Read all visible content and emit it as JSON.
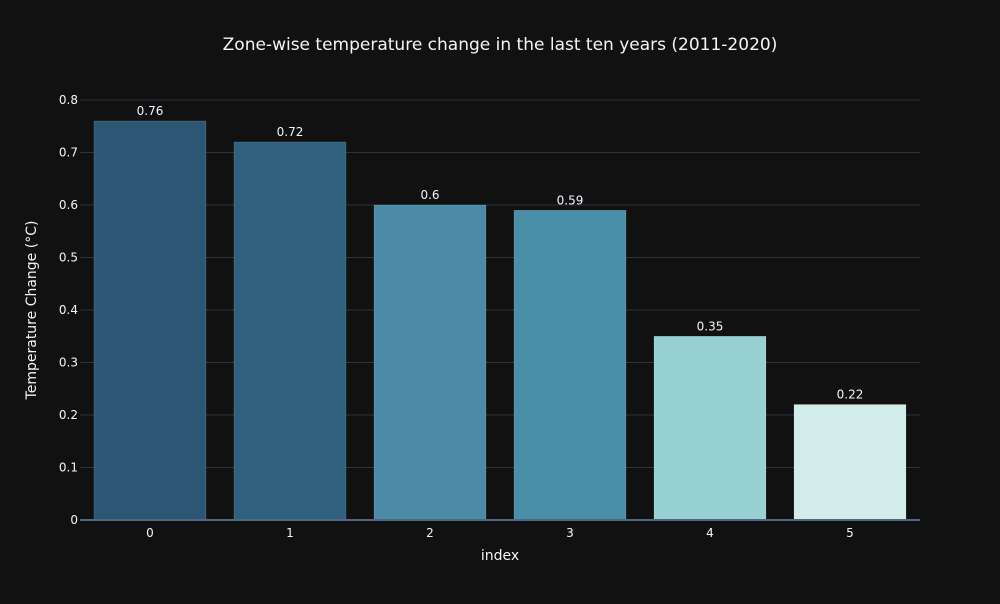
{
  "chart_data": {
    "type": "bar",
    "title": "Zone-wise temperature change in the last ten years (2011-2020)",
    "xlabel": "index",
    "ylabel": "Temperature Change (°C)",
    "categories": [
      "0",
      "1",
      "2",
      "3",
      "4",
      "5"
    ],
    "values": [
      0.76,
      0.72,
      0.6,
      0.59,
      0.35,
      0.22
    ],
    "value_labels": [
      "0.76",
      "0.72",
      "0.6",
      "0.59",
      "0.35",
      "0.22"
    ],
    "bar_colors": [
      "#2c5674",
      "#2f607e",
      "#4b8ba6",
      "#4b8ea8",
      "#98d1d4",
      "#d2ece9"
    ],
    "ylim": [
      0,
      0.8
    ],
    "yticks": [
      0,
      0.1,
      0.2,
      0.3,
      0.4,
      0.5,
      0.6,
      0.7,
      0.8
    ],
    "ytick_labels": [
      "0",
      "0.1",
      "0.2",
      "0.3",
      "0.4",
      "0.5",
      "0.6",
      "0.7",
      "0.8"
    ],
    "grid": true,
    "legend": false
  },
  "colors": {
    "background": "#111111",
    "grid": "#283442",
    "text": "#f2f5fa",
    "zeroline": "#506784",
    "bar_outline": "#ffffff"
  }
}
